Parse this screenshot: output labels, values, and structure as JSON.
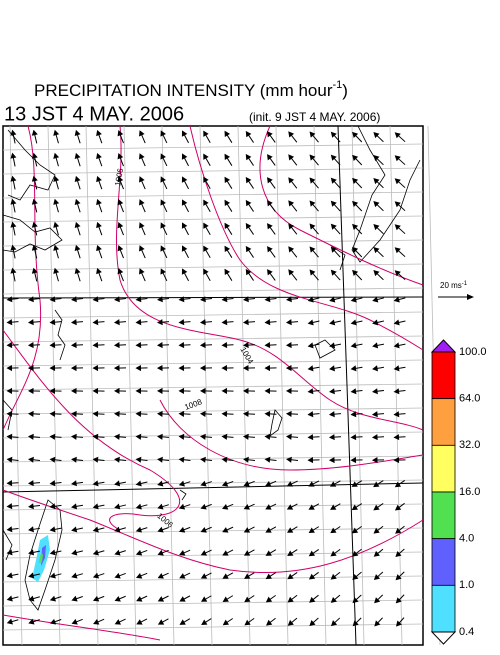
{
  "header": {
    "title": {
      "text": "PRECIPITATION INTENSITY (mm hour",
      "superscript": "-1",
      "close": ")"
    },
    "valid_time": "13 JST 4 MAY. 2006",
    "init_time": "(init. 9 JST 4 MAY. 2006)"
  },
  "vector_legend": {
    "text": "20 ms",
    "superscript": "-1"
  },
  "colorbar": {
    "labels": [
      "100.0",
      "64.0",
      "32.0",
      "16.0",
      "4.0",
      "1.0",
      "0.4"
    ],
    "colors": [
      "#a020f0",
      "#ff0000",
      "#ffa040",
      "#ffff60",
      "#50e050",
      "#6060ff",
      "#50e0ff",
      "#ffffff"
    ]
  },
  "contours": {
    "labels": [
      "1006",
      "1004",
      "1008",
      "1006"
    ]
  }
}
